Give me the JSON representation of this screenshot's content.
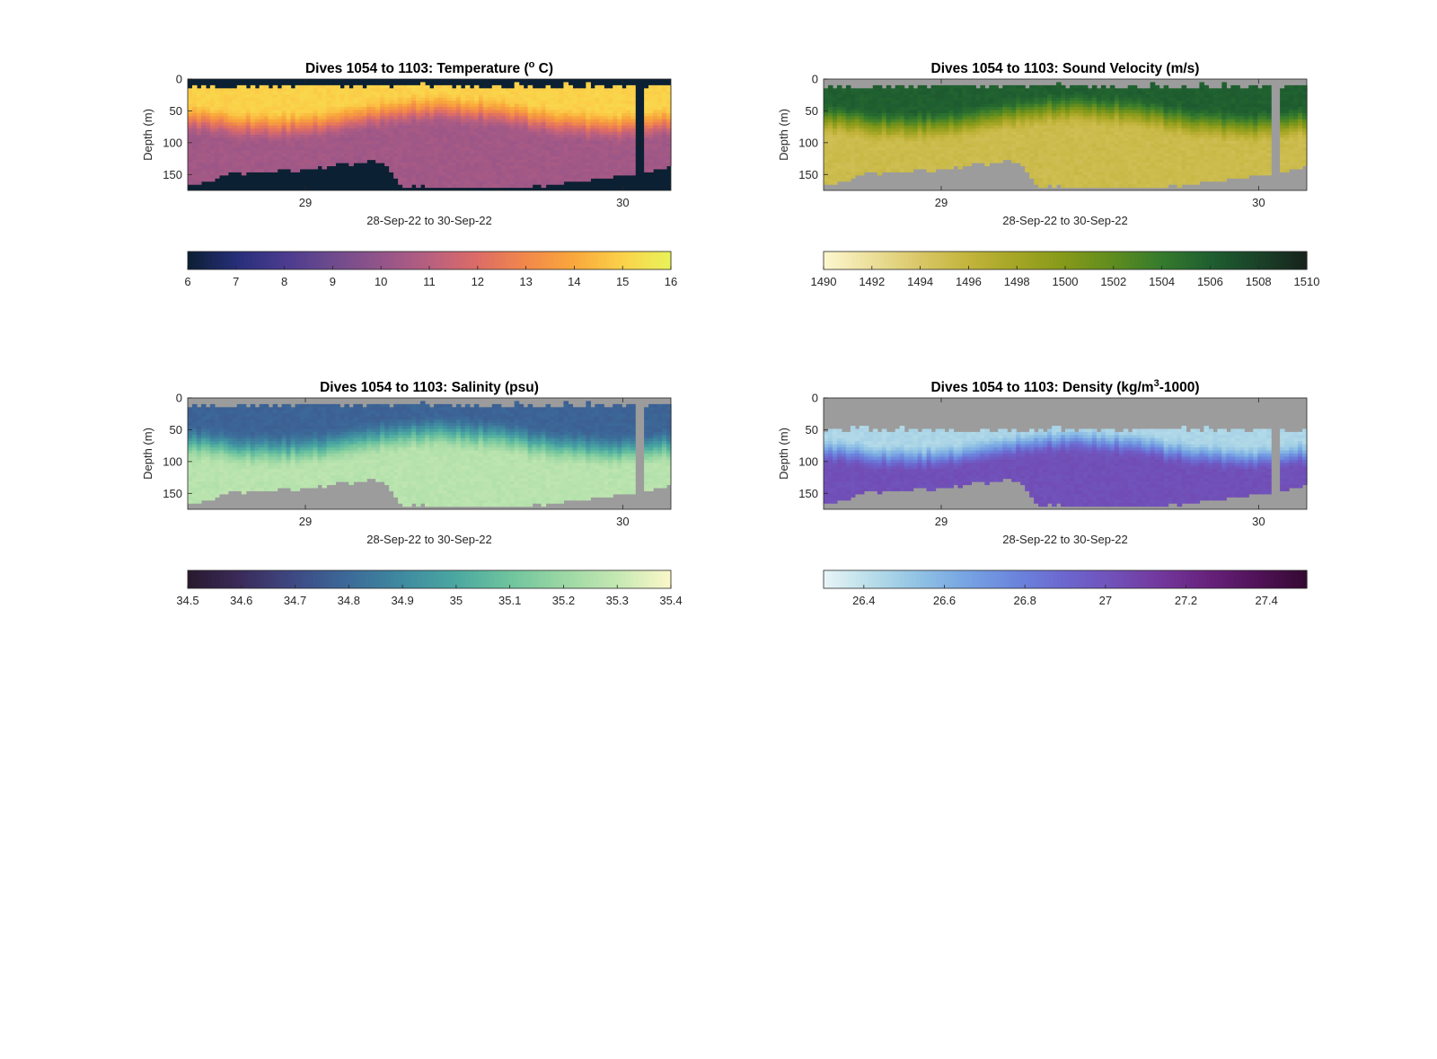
{
  "figure": {
    "colors": {
      "background": "#ffffff",
      "no_data": "#9c9c9c",
      "axis": "#262626"
    }
  },
  "chart_data": [
    {
      "id": "temperature",
      "type": "heatmap",
      "title_parts": [
        "Dives 1054 to 1103: Temperature (",
        "o",
        " C)"
      ],
      "xlabel": "28-Sep-22 to 30-Sep-22",
      "ylabel": "Depth (m)",
      "x_ticks": [
        "29",
        "30"
      ],
      "y_ticks": [
        "0",
        "50",
        "100",
        "150"
      ],
      "ylim": [
        0,
        175
      ],
      "colorbar": {
        "ticks": [
          "6",
          "7",
          "8",
          "9",
          "10",
          "11",
          "12",
          "13",
          "14",
          "15",
          "16"
        ],
        "range": [
          6,
          16
        ]
      },
      "no_data_color": "#0b2033",
      "colormap": [
        "#0b1f33",
        "#262e78",
        "#4a3a8f",
        "#6e4a8d",
        "#93548a",
        "#b85f80",
        "#dc6c67",
        "#f2884a",
        "#f9a83b",
        "#fbd24a",
        "#e8f35a"
      ],
      "profile": {
        "surface": 15.0,
        "mixed_depth": 30,
        "thermocline": 55,
        "deep": 10.4
      }
    },
    {
      "id": "sound_velocity",
      "type": "heatmap",
      "title_parts": [
        "Dives 1054 to 1103: Sound Velocity (m/s)"
      ],
      "xlabel": "28-Sep-22 to 30-Sep-22",
      "ylabel": "Depth (m)",
      "x_ticks": [
        "29",
        "30"
      ],
      "y_ticks": [
        "0",
        "50",
        "100",
        "150"
      ],
      "ylim": [
        0,
        175
      ],
      "colorbar": {
        "ticks": [
          "1490",
          "1492",
          "1494",
          "1496",
          "1498",
          "1500",
          "1502",
          "1504",
          "1506",
          "1508",
          "1510"
        ],
        "range": [
          1490,
          1510
        ]
      },
      "no_data_color": "#9c9c9c",
      "colormap": [
        "#fdf7cf",
        "#ecdf9a",
        "#d9c766",
        "#c2b43c",
        "#a4a524",
        "#85991a",
        "#5f8c1f",
        "#357a2d",
        "#1f5f30",
        "#1a4228",
        "#16231c"
      ],
      "profile": {
        "surface": 1506.0,
        "mixed_depth": 30,
        "thermocline": 55,
        "deep": 1495.2
      }
    },
    {
      "id": "salinity",
      "type": "heatmap",
      "title_parts": [
        "Dives 1054 to 1103: Salinity (psu)"
      ],
      "xlabel": "28-Sep-22 to 30-Sep-22",
      "ylabel": "Depth (m)",
      "x_ticks": [
        "29",
        "30"
      ],
      "y_ticks": [
        "0",
        "50",
        "100",
        "150"
      ],
      "ylim": [
        0,
        175
      ],
      "colorbar": {
        "ticks": [
          "34.5",
          "34.6",
          "34.7",
          "34.8",
          "34.9",
          "35",
          "35.1",
          "35.2",
          "35.3",
          "35.4"
        ],
        "range": [
          34.5,
          35.4
        ]
      },
      "no_data_color": "#9c9c9c",
      "colormap": [
        "#29192e",
        "#3b2c5b",
        "#3e4a85",
        "#3c6a99",
        "#3f8aa0",
        "#4ba8a1",
        "#6fc49e",
        "#9bd7a4",
        "#c5e8b2",
        "#fbf8c9"
      ],
      "profile": {
        "surface": 34.78,
        "mixed_depth": 35,
        "thermocline": 60,
        "deep": 35.27
      }
    },
    {
      "id": "density",
      "type": "heatmap",
      "title_parts": [
        "Dives 1054 to 1103: Density (kg/m",
        "3",
        "-1000)"
      ],
      "xlabel": "28-Sep-22 to 30-Sep-22",
      "ylabel": "Depth (m)",
      "x_ticks": [
        "29",
        "30"
      ],
      "y_ticks": [
        "0",
        "50",
        "100",
        "150"
      ],
      "ylim": [
        0,
        175
      ],
      "colorbar": {
        "ticks": [
          "26.4",
          "26.6",
          "26.8",
          "27",
          "27.2",
          "27.4"
        ],
        "range": [
          26.3,
          27.5
        ]
      },
      "no_data_color": "#9c9c9c",
      "colormap": [
        "#e8f5f7",
        "#b8dde8",
        "#8fc1e4",
        "#76a2e3",
        "#6b84dc",
        "#6c66cf",
        "#7150b8",
        "#72379c",
        "#67217a",
        "#4f1257",
        "#360a32"
      ],
      "profile": {
        "surface": 26.45,
        "mixed_depth": 55,
        "thermocline": 45,
        "deep": 27.02
      }
    }
  ]
}
